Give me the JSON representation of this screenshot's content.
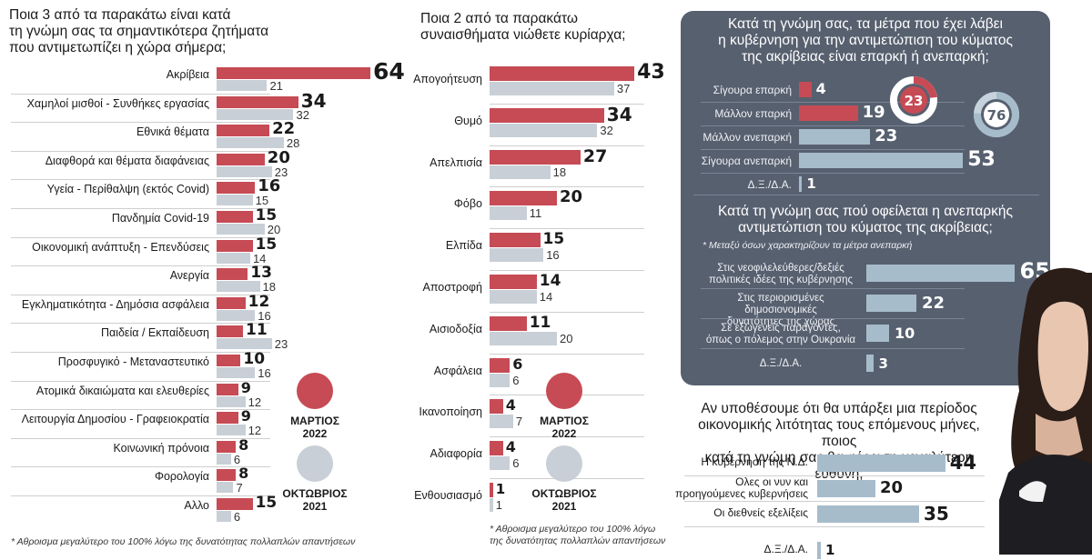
{
  "colors": {
    "march_2022": "#c64b55",
    "october_2021": "#c9cfd6",
    "panel_bg": "#57606f",
    "panel_bar": "#a7bccb"
  },
  "legend": {
    "march": {
      "label": "ΜΑΡΤΙΟΣ",
      "year": "2022"
    },
    "october": {
      "label": "ΟΚΤΩΒΡΙΟΣ",
      "year": "2021"
    }
  },
  "chart_data": [
    {
      "type": "bar",
      "title": "Ποια 3 από τα παρακάτω είναι κατά τη γνώμη σας τα σημαντικότερα ζητήματα που αντιμετωπίζει η χώρα σήμερα;",
      "title_lines": [
        "Ποια 3 από τα παρακάτω είναι κατά",
        "τη γνώμη σας τα σημαντικότερα ζητήματα",
        "που αντιμετωπίζει η χώρα σήμερα;"
      ],
      "orientation": "horizontal",
      "categories": [
        "Ακρίβεια",
        "Χαμηλοί μισθοί - Συνθήκες εργασίας",
        "Εθνικά θέματα",
        "Διαφθορά και θέματα διαφάνειας",
        "Υγεία - Περίθαλψη (εκτός Covid)",
        "Πανδημία Covid-19",
        "Οικονομική ανάπτυξη - Επενδύσεις",
        "Ανεργία",
        "Εγκληματικότητα - Δημόσια ασφάλεια",
        "Παιδεία / Εκπαίδευση",
        "Προσφυγικό - Μεταναστευτικό",
        "Ατομικά δικαιώματα και ελευθερίες",
        "Λειτουργία Δημοσίου - Γραφειοκρατία",
        "Κοινωνική πρόνοια",
        "Φορολογία",
        "Αλλο"
      ],
      "series": [
        {
          "name": "ΜΑΡΤΙΟΣ 2022",
          "values": [
            64,
            34,
            22,
            20,
            16,
            15,
            15,
            13,
            12,
            11,
            10,
            9,
            9,
            8,
            8,
            15
          ]
        },
        {
          "name": "ΟΚΤΩΒΡΙΟΣ 2021",
          "values": [
            21,
            32,
            28,
            23,
            15,
            20,
            14,
            18,
            16,
            23,
            16,
            12,
            12,
            6,
            7,
            6
          ]
        }
      ],
      "footnote": "* Αθροισμα μεγαλύτερο του 100% λόγω της δυνατότητας πολλαπλών απαντήσεων"
    },
    {
      "type": "bar",
      "title": "Ποια 2 από τα παρακάτω συναισθήματα νιώθετε κυρίαρχα;",
      "title_lines": [
        "Ποια 2 από τα παρακάτω",
        "συναισθήματα νιώθετε κυρίαρχα;"
      ],
      "orientation": "horizontal",
      "categories": [
        "Απογοήτευση",
        "Θυμό",
        "Απελπισία",
        "Φόβο",
        "Ελπίδα",
        "Αποστροφή",
        "Αισιοδοξία",
        "Ασφάλεια",
        "Ικανοποίηση",
        "Αδιαφορία",
        "Ενθουσιασμό"
      ],
      "series": [
        {
          "name": "ΜΑΡΤΙΟΣ 2022",
          "values": [
            43,
            34,
            27,
            20,
            15,
            14,
            11,
            6,
            4,
            4,
            1
          ]
        },
        {
          "name": "ΟΚΤΩΒΡΙΟΣ 2021",
          "values": [
            37,
            32,
            18,
            11,
            16,
            14,
            20,
            6,
            7,
            6,
            1
          ]
        }
      ],
      "footnote_lines": [
        "* Αθροισμα μεγαλύτερο του 100% λόγω",
        "της δυνατότητας πολλαπλών απαντήσεων"
      ]
    },
    {
      "type": "bar",
      "title": "Κατά τη γνώμη σας, τα μέτρα που έχει λάβει η κυβέρνηση για την αντιμετώπιση του κύματος της ακρίβειας είναι επαρκή ή ανεπαρκή;",
      "title_lines": [
        "Κατά τη γνώμη σας, τα μέτρα που έχει λάβει",
        "η κυβέρνηση για την αντιμετώπιση του κύματος",
        "της ακρίβειας είναι επαρκή ή ανεπαρκή;"
      ],
      "orientation": "horizontal",
      "categories": [
        "Σίγουρα επαρκή",
        "Μάλλον επαρκή",
        "Μάλλον ανεπαρκή",
        "Σίγουρα ανεπαρκή",
        "Δ.Ξ./Δ.Α."
      ],
      "values": [
        4,
        19,
        23,
        53,
        1
      ],
      "groups": [
        "sufficient",
        "sufficient",
        "insufficient",
        "insufficient",
        "none"
      ],
      "totals": {
        "sufficient": 23,
        "insufficient": 76
      }
    },
    {
      "type": "bar",
      "title": "Κατά τη γνώμη σας πού οφείλεται η ανεπαρκής αντιμετώπιση του κύματος της ακρίβειας;",
      "title_lines": [
        "Κατά τη γνώμη σας πού οφείλεται η ανεπαρκής",
        "αντιμετώπιση του κύματος της ακρίβειας;"
      ],
      "subtitle": "* Μεταξύ όσων χαρακτηρίζουν τα μέτρα ανεπαρκή",
      "orientation": "horizontal",
      "categories": [
        "Στις νεοφιλελεύθερες/δεξιές πολιτικές ιδέες της κυβέρνησης",
        "Στις περιορισμένες δημοσιονομικές δυνατότητες της χώρας",
        "Σε εξωγενείς παράγοντες, όπως ο πόλεμος στην Ουκρανία",
        "Δ.Ξ./Δ.Α."
      ],
      "category_lines": [
        [
          "Στις νεοφιλελεύθερες/δεξιές",
          "πολιτικές ιδέες της κυβέρνησης"
        ],
        [
          "Στις περιορισμένες δημοσιονομικές",
          "δυνατότητες της χώρας"
        ],
        [
          "Σε εξωγενείς παράγοντες,",
          "όπως ο πόλεμος στην Ουκρανία"
        ],
        [
          "Δ.Ξ./Δ.Α."
        ]
      ],
      "values": [
        65,
        22,
        10,
        3
      ]
    },
    {
      "type": "bar",
      "title": "Αν υποθέσουμε ότι θα υπάρξει μια περίοδος οικονομικής λιτότητας τους επόμενους μήνες, ποιος κατά τη γνώμη σας θα φέρει τη μεγαλύτερη ευθύνη;",
      "title_lines": [
        "Αν υποθέσουμε ότι θα υπάρξει μια περίοδος",
        "οικονομικής λιτότητας τους επόμενους μήνες, ποιος",
        "κατά τη γνώμη σας θα φέρει τη μεγαλύτερη ευθύνη;"
      ],
      "orientation": "horizontal",
      "categories": [
        "Η κυβέρνηση της Ν.Δ.",
        "Ολες οι νυν και προηγούμενες κυβερνήσεις",
        "Οι διεθνείς εξελίξεις",
        "Δ.Ξ./Δ.Α."
      ],
      "category_lines": [
        [
          "Η κυβέρνηση της Ν.Δ."
        ],
        [
          "Ολες οι νυν και",
          "προηγούμενες κυβερνήσεις"
        ],
        [
          "Οι διεθνείς εξελίξεις"
        ],
        [
          "Δ.Ξ./Δ.Α."
        ]
      ],
      "values": [
        44,
        20,
        35,
        1
      ]
    }
  ]
}
